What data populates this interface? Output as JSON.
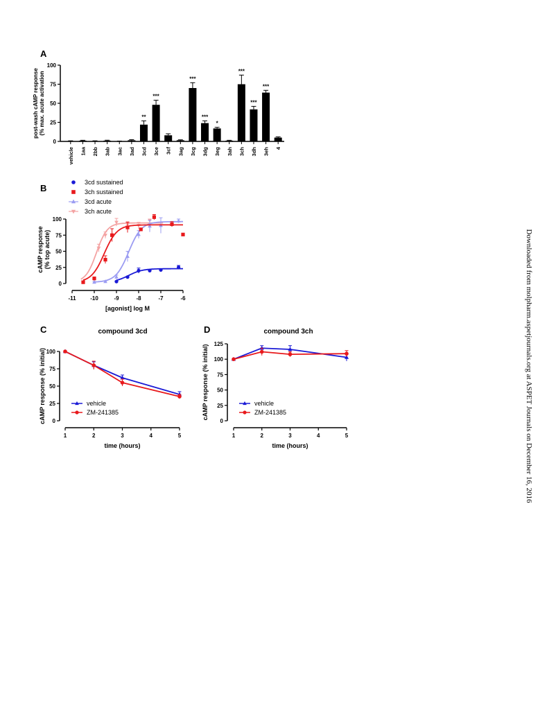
{
  "side_note": "Downloaded from molpharm.aspetjournals.org at ASPET Journals on December 16, 2016",
  "colors": {
    "bar": "#000000",
    "sustained_3cd": "#1a1ad6",
    "sustained_3ch": "#e8191c",
    "acute_3cd": "#9b9cf2",
    "acute_3ch": "#f4a3a3",
    "vehicle": "#1a1ad6",
    "zm": "#e8191c"
  },
  "chart_data": [
    {
      "panel": "A",
      "type": "bar",
      "ylabel_lines": [
        "post-wash cAMP response",
        "(%  max. acute activation"
      ],
      "ylim": [
        0,
        100
      ],
      "yticks": [
        0,
        25,
        50,
        75,
        100
      ],
      "categories": [
        "vehicle",
        "1aa",
        "2bb",
        "3ab",
        "3ac",
        "3ad",
        "3cd",
        "3ce",
        "3cf",
        "3ag",
        "3cg",
        "3dg",
        "3eg",
        "3ah",
        "3ch",
        "3dh",
        "3eh",
        "4"
      ],
      "values": [
        0.5,
        1,
        0.5,
        1,
        0.3,
        1.5,
        22,
        48,
        8,
        1.5,
        70,
        24,
        17,
        1,
        75,
        42,
        64,
        5
      ],
      "errors": [
        0.3,
        0.5,
        0.3,
        0.6,
        0.2,
        0.8,
        5,
        6,
        2,
        0.6,
        7,
        3,
        1.5,
        0.5,
        12,
        4,
        3,
        1
      ],
      "significance": [
        "",
        "",
        "",
        "",
        "",
        "",
        "**",
        "***",
        "",
        "",
        "***",
        "***",
        "*",
        "",
        "***",
        "***",
        "***",
        ""
      ]
    },
    {
      "panel": "B",
      "type": "scatter",
      "xlabel": "[agonist] log M",
      "ylabel_lines": [
        "cAMP response",
        "(% top acute)"
      ],
      "xlim": [
        -11,
        -6
      ],
      "ylim": [
        0,
        100
      ],
      "xticks": [
        -11,
        -10,
        -9,
        -8,
        -7,
        -6
      ],
      "yticks": [
        0,
        25,
        50,
        75,
        100
      ],
      "legend": [
        "3cd sustained",
        "3ch sustained",
        "3cd acute",
        "3ch acute"
      ],
      "series": [
        {
          "name": "3cd sustained",
          "marker": "circle",
          "x": [
            -9.0,
            -8.5,
            -8.0,
            -7.5,
            -7.0,
            -6.2
          ],
          "y": [
            3,
            10,
            20,
            20,
            21,
            25
          ],
          "err": [
            1,
            1,
            4,
            1,
            2,
            3
          ],
          "fit": {
            "bottom": 2,
            "top": 23,
            "ec50": -8.45,
            "hill": 1.4,
            "xrange": [
              -9.0,
              -6.0
            ]
          }
        },
        {
          "name": "3ch sustained",
          "marker": "square",
          "x": [
            -10.5,
            -10.0,
            -9.5,
            -9.2,
            -8.5,
            -7.9,
            -7.3,
            -6.5,
            -6.0
          ],
          "y": [
            2,
            8,
            37,
            75,
            87,
            84,
            103,
            92,
            76
          ],
          "err": [
            1,
            2,
            6,
            10,
            8,
            2,
            4,
            4,
            1
          ],
          "fit": {
            "bottom": 2,
            "top": 91,
            "ec50": -9.55,
            "hill": 1.5,
            "xrange": [
              -10.5,
              -6.0
            ]
          }
        },
        {
          "name": "3cd acute",
          "marker": "triangle",
          "x": [
            -10.0,
            -9.5,
            -9.0,
            -8.5,
            -8.0,
            -7.5,
            -7.0,
            -6.2
          ],
          "y": [
            2,
            3,
            10,
            42,
            76,
            89,
            90,
            97
          ],
          "err": [
            1,
            1,
            3,
            8,
            6,
            9,
            12,
            3
          ],
          "fit": {
            "bottom": 2,
            "top": 96,
            "ec50": -8.45,
            "hill": 1.5,
            "xrange": [
              -10.0,
              -6.0
            ]
          }
        },
        {
          "name": "3ch acute",
          "marker": "triangle-down",
          "x": [
            -10.5,
            -10.0,
            -9.8,
            -9.5,
            -9.0,
            -8.5,
            -8.0,
            -7.5,
            -7.0
          ],
          "y": [
            2,
            5,
            55,
            75,
            95,
            92,
            90,
            98,
            90
          ],
          "err": [
            1,
            2,
            6,
            5,
            6,
            4,
            5,
            2,
            5
          ],
          "fit": {
            "bottom": 2,
            "top": 94,
            "ec50": -9.9,
            "hill": 1.8,
            "xrange": [
              -10.6,
              -6.9
            ]
          }
        }
      ]
    },
    {
      "panel": "C",
      "type": "line",
      "title": "compound 3cd",
      "xlabel": "time  (hours)",
      "ylabel": "cAMP response (% initial)",
      "xlim": [
        1,
        5
      ],
      "ylim": [
        0,
        100
      ],
      "xticks": [
        1,
        2,
        3,
        4,
        5
      ],
      "yticks": [
        0,
        25,
        50,
        75,
        100
      ],
      "legend": [
        "vehicle",
        "ZM-241385"
      ],
      "series": [
        {
          "name": "vehicle",
          "x": [
            1,
            2,
            3,
            5
          ],
          "y": [
            100,
            80,
            62,
            38
          ],
          "err": [
            0,
            5,
            4,
            4
          ]
        },
        {
          "name": "ZM-241385",
          "x": [
            1,
            2,
            3,
            5
          ],
          "y": [
            100,
            80,
            55,
            35
          ],
          "err": [
            0,
            6,
            5,
            3
          ]
        }
      ]
    },
    {
      "panel": "D",
      "type": "line",
      "title": "compound 3ch",
      "xlabel": "time  (hours)",
      "ylabel": "cAMP response (% initial)",
      "xlim": [
        1,
        5
      ],
      "ylim": [
        0,
        125
      ],
      "xticks": [
        1,
        2,
        3,
        4,
        5
      ],
      "yticks": [
        0,
        25,
        50,
        75,
        100,
        125
      ],
      "legend": [
        "vehicle",
        "ZM-241385"
      ],
      "series": [
        {
          "name": "vehicle",
          "x": [
            1,
            2,
            3,
            5
          ],
          "y": [
            100,
            118,
            116,
            103
          ],
          "err": [
            0,
            4,
            6,
            6
          ]
        },
        {
          "name": "ZM-241385",
          "x": [
            1,
            2,
            3,
            5
          ],
          "y": [
            100,
            112,
            108,
            109
          ],
          "err": [
            0,
            6,
            4,
            5
          ]
        }
      ]
    }
  ]
}
